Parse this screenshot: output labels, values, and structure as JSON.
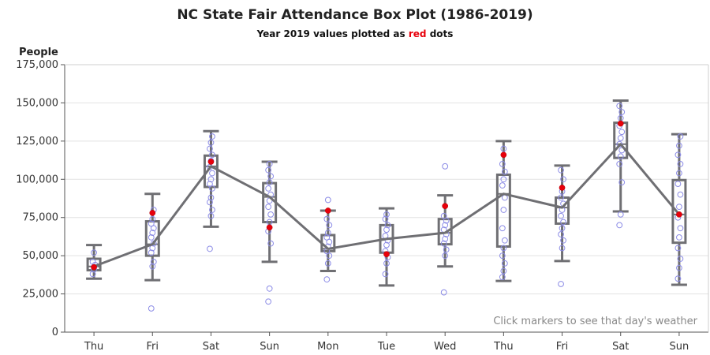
{
  "chart_data": {
    "type": "box",
    "title": "NC State Fair Attendance Box Plot (1986-2019)",
    "subtitle": {
      "before": "Year 2019 values plotted as ",
      "highlight": "red",
      "after": " dots"
    },
    "ylabel": "People",
    "xlabel": "",
    "note": "Click markers to see that day's weather",
    "ylim": [
      0,
      175000
    ],
    "yticks": [
      0,
      25000,
      50000,
      75000,
      100000,
      125000,
      150000,
      175000
    ],
    "ytick_labels": [
      "0",
      "25,000",
      "50,000",
      "75,000",
      "100,000",
      "125,000",
      "150,000",
      "175,000"
    ],
    "grid": true,
    "categories": [
      "Thu",
      "Fri",
      "Sat",
      "Sun",
      "Mon",
      "Tue",
      "Wed",
      "Thu",
      "Fri",
      "Sat",
      "Sun"
    ],
    "box": {
      "min": [
        35000,
        34000,
        69000,
        46000,
        40000,
        30500,
        43000,
        33500,
        46500,
        79000,
        31000
      ],
      "q1": [
        40500,
        50000,
        95000,
        72000,
        53000,
        52000,
        57500,
        56000,
        71000,
        114000,
        58500
      ],
      "median": [
        43000,
        57500,
        108500,
        88500,
        54500,
        61000,
        65000,
        90500,
        81500,
        123000,
        77000
      ],
      "q3": [
        48000,
        72500,
        115500,
        97500,
        63500,
        70000,
        74000,
        103000,
        88000,
        137000,
        99500
      ],
      "max": [
        57000,
        90500,
        131500,
        111500,
        79500,
        81000,
        89500,
        125000,
        109000,
        151500,
        129500
      ]
    },
    "mean_line": [
      43000,
      57500,
      108500,
      88500,
      54500,
      61000,
      65000,
      90500,
      81500,
      123000,
      77000
    ],
    "year_2019": [
      42500,
      78000,
      111500,
      68500,
      79500,
      51000,
      82500,
      116000,
      94500,
      136500,
      77000
    ],
    "outliers": [
      [
        38000,
        41000,
        44000,
        46000,
        52000
      ],
      [
        15500,
        43000,
        46000,
        52000,
        55000,
        58000,
        62000,
        65000,
        68000,
        71000,
        74000,
        80000
      ],
      [
        54500,
        76000,
        80000,
        85000,
        88000,
        94000,
        97000,
        100000,
        104000,
        108000,
        112000,
        116000,
        120000,
        124000,
        128000
      ],
      [
        20000,
        28500,
        58000,
        66000,
        72000,
        77000,
        82000,
        86000,
        90000,
        94000,
        98000,
        102000,
        106000,
        110000
      ],
      [
        34500,
        45000,
        50000,
        53000,
        56000,
        59000,
        62000,
        65000,
        70000,
        74000,
        86500
      ],
      [
        38000,
        45000,
        49000,
        53000,
        57000,
        60000,
        63000,
        67000,
        70000,
        74000,
        77000
      ],
      [
        26000,
        50000,
        54000,
        58000,
        61000,
        64000,
        67000,
        70000,
        73000,
        76000,
        108500
      ],
      [
        36000,
        40000,
        45000,
        50000,
        55000,
        60000,
        68000,
        80000,
        88000,
        96000,
        100000,
        105000,
        110000,
        120000
      ],
      [
        31500,
        55000,
        60000,
        64000,
        68000,
        72000,
        76000,
        80000,
        84000,
        88000,
        92000,
        100000,
        106000
      ],
      [
        70000,
        77000,
        98000,
        110000,
        115000,
        119000,
        123000,
        127000,
        131000,
        135000,
        140000,
        144000,
        148000
      ],
      [
        35000,
        42000,
        48000,
        55000,
        62000,
        68000,
        75000,
        82000,
        90000,
        97000,
        104000,
        110000,
        116000,
        122000,
        128000
      ]
    ],
    "colors": {
      "box": "#6f6f73",
      "points": "#8c8ce6",
      "highlight": "#e8000b",
      "grid": "#e2e2e2",
      "axis": "#555555"
    }
  }
}
